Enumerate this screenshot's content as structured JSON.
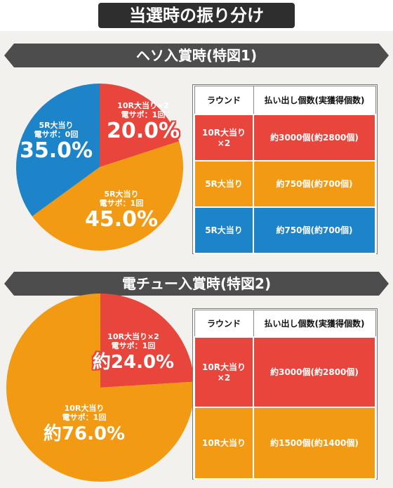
{
  "header": {
    "title": "当選時の振り分け"
  },
  "sections": [
    {
      "title": "ヘソ入賞時(特図1)",
      "labels": [
        {
          "name": "10R大当り×2",
          "sub": "電サポ：1回",
          "pct": "20.0%"
        },
        {
          "name": "5R大当り",
          "sub": "電サポ：1回",
          "pct": "45.0%"
        },
        {
          "name": "5R大当り",
          "sub": "電サポ：0回",
          "pct": "35.0%"
        }
      ],
      "table": {
        "headers": [
          "ラウンド",
          "払い出し個数(実獲得個数)"
        ],
        "rows": [
          {
            "round": "10R大当り\n×2",
            "payout": "約3000個(約2800個)"
          },
          {
            "round": "5R大当り",
            "payout": "約750個(約700個)"
          },
          {
            "round": "5R大当り",
            "payout": "約750個(約700個)"
          }
        ]
      }
    },
    {
      "title": "電チュー入賞時(特図2)",
      "labels": [
        {
          "name": "10R大当り×2",
          "sub": "電サポ：1回",
          "pct": "約24.0%"
        },
        {
          "name": "10R大当り",
          "sub": "電サポ：1回",
          "pct": "約76.0%"
        }
      ],
      "table": {
        "headers": [
          "ラウンド",
          "払い出し個数(実獲得個数)"
        ],
        "rows": [
          {
            "round": "10R大当り\n×2",
            "payout": "約3000個(約2800個)"
          },
          {
            "round": "10R大当り",
            "payout": "約1500個(約1400個)"
          }
        ]
      }
    }
  ],
  "colors": {
    "red": "#e8453c",
    "orange": "#f39a14",
    "blue": "#1d84c9"
  },
  "chart_data": [
    {
      "type": "pie",
      "title": "ヘソ入賞時(特図1)",
      "categories": [
        "10R大当り×2 電サポ：1回",
        "5R大当り 電サポ：1回",
        "5R大当り 電サポ：0回"
      ],
      "values": [
        20.0,
        45.0,
        35.0
      ],
      "colors": [
        "#e8453c",
        "#f39a14",
        "#1d84c9"
      ]
    },
    {
      "type": "pie",
      "title": "電チュー入賞時(特図2)",
      "categories": [
        "10R大当り×2 電サポ：1回",
        "10R大当り 電サポ：1回"
      ],
      "values": [
        24.0,
        76.0
      ],
      "colors": [
        "#e8453c",
        "#f39a14"
      ]
    }
  ]
}
